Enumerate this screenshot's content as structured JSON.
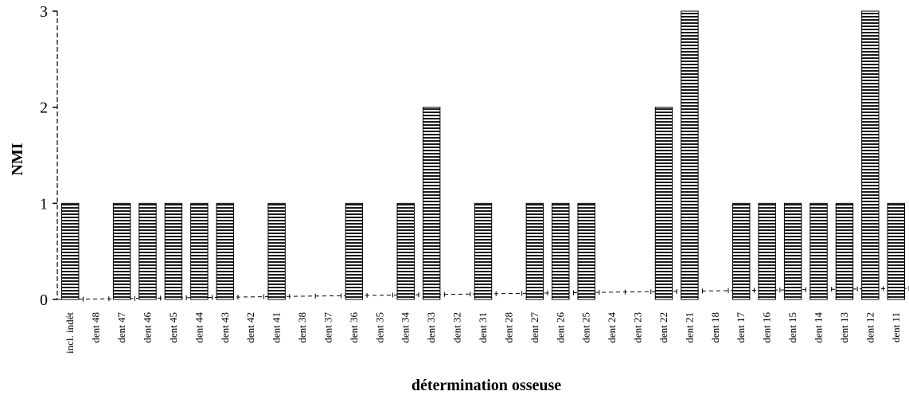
{
  "chart_data": {
    "type": "bar",
    "title": "",
    "xlabel": "détermination osseuse",
    "ylabel": "NMI",
    "ylim": [
      0,
      3
    ],
    "yticks": [
      "0",
      "1",
      "2",
      "3"
    ],
    "grid": false,
    "legend": "none",
    "bar_pattern": "horizontal-stripes",
    "categories": [
      "incl. indét",
      "dent 48",
      "dent 47",
      "dent 46",
      "dent 45",
      "dent 44",
      "dent 43",
      "dent 42",
      "dent 41",
      "dent 38",
      "dent 37",
      "dent 36",
      "dent 35",
      "dent 34",
      "dent 33",
      "dent 32",
      "dent 31",
      "dent 28",
      "dent 27",
      "dent 26",
      "dent 25",
      "dent 24",
      "dent 23",
      "dent 22",
      "dent 21",
      "dent 18",
      "dent 17",
      "dent 16",
      "dent 15",
      "dent 14",
      "dent 13",
      "dent 12",
      "dent 11"
    ],
    "values": [
      1,
      0,
      1,
      1,
      1,
      1,
      1,
      0,
      1,
      0,
      0,
      1,
      0,
      1,
      2,
      0,
      1,
      0,
      1,
      1,
      1,
      0,
      0,
      2,
      3,
      0,
      1,
      1,
      1,
      1,
      1,
      3,
      1
    ]
  }
}
